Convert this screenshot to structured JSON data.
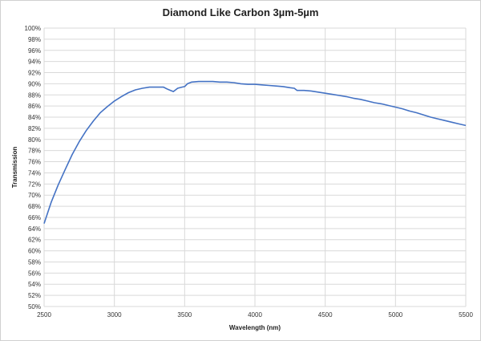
{
  "chart_data": {
    "type": "line",
    "title": "Diamond Like Carbon 3µm-5µm",
    "xlabel": "Wavelength (nm)",
    "ylabel": "Transmission",
    "xlim": [
      2500,
      5500
    ],
    "ylim": [
      50,
      100
    ],
    "x_ticks": [
      "2500",
      "3000",
      "3500",
      "4000",
      "4500",
      "5000",
      "5500"
    ],
    "y_ticks": [
      "50%",
      "52%",
      "54%",
      "56%",
      "58%",
      "60%",
      "62%",
      "64%",
      "66%",
      "68%",
      "70%",
      "72%",
      "74%",
      "76%",
      "78%",
      "80%",
      "82%",
      "84%",
      "86%",
      "88%",
      "90%",
      "92%",
      "94%",
      "96%",
      "98%",
      "100%"
    ],
    "grid": true,
    "legend": "none",
    "series_color": "#4472C4",
    "series": [
      {
        "x": [
          2500,
          2550,
          2600,
          2650,
          2700,
          2750,
          2800,
          2850,
          2900,
          2950,
          3000,
          3050,
          3100,
          3150,
          3200,
          3250,
          3300,
          3350,
          3380,
          3400,
          3420,
          3450,
          3480,
          3500,
          3520,
          3550,
          3600,
          3650,
          3700,
          3750,
          3800,
          3850,
          3900,
          3950,
          4000,
          4050,
          4100,
          4150,
          4200,
          4250,
          4280,
          4300,
          4350,
          4400,
          4450,
          4500,
          4550,
          4600,
          4650,
          4700,
          4750,
          4800,
          4850,
          4900,
          4950,
          5000,
          5050,
          5100,
          5150,
          5200,
          5250,
          5300,
          5350,
          5400,
          5450,
          5500
        ],
        "y": [
          64.9,
          68.7,
          71.8,
          74.6,
          77.3,
          79.6,
          81.6,
          83.3,
          84.8,
          85.9,
          86.9,
          87.7,
          88.4,
          88.9,
          89.2,
          89.4,
          89.4,
          89.4,
          89.0,
          88.8,
          88.6,
          89.2,
          89.4,
          89.5,
          90.0,
          90.3,
          90.4,
          90.4,
          90.4,
          90.3,
          90.3,
          90.2,
          90.0,
          89.9,
          89.9,
          89.8,
          89.7,
          89.6,
          89.5,
          89.3,
          89.2,
          88.8,
          88.8,
          88.7,
          88.5,
          88.3,
          88.1,
          87.9,
          87.7,
          87.4,
          87.2,
          86.9,
          86.6,
          86.4,
          86.1,
          85.8,
          85.5,
          85.1,
          84.8,
          84.4,
          84.0,
          83.7,
          83.4,
          83.1,
          82.8,
          82.5
        ]
      }
    ]
  }
}
